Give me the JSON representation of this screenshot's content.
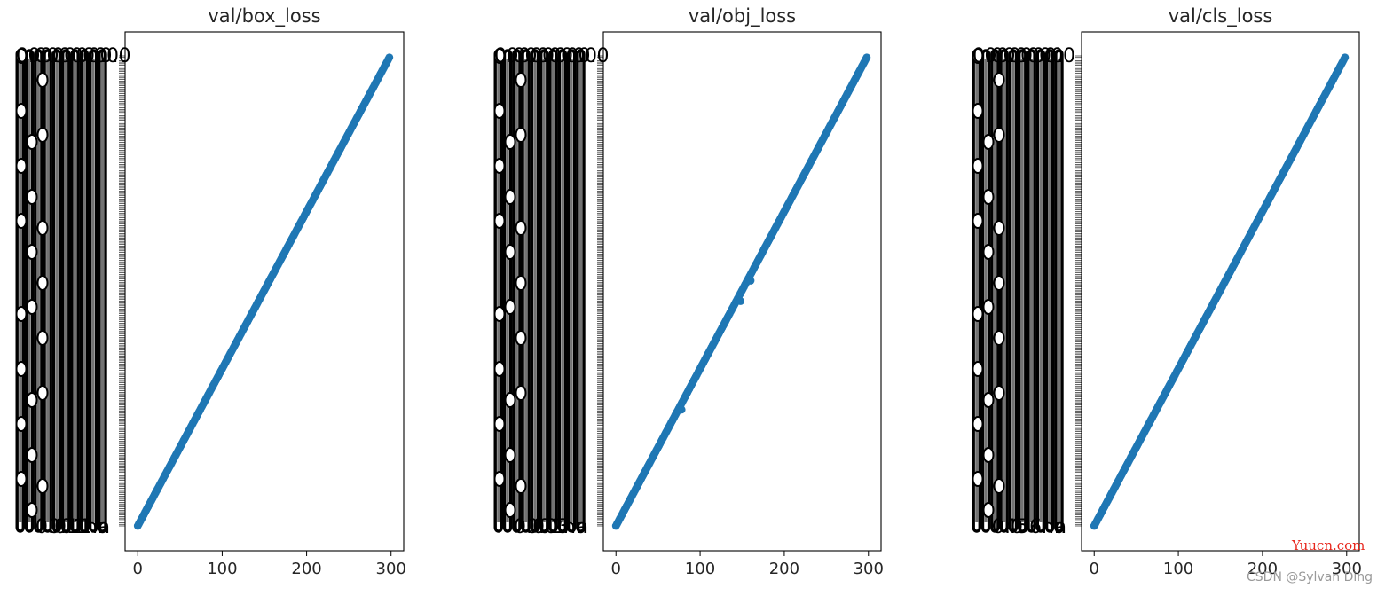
{
  "chart_data": [
    {
      "type": "scatter",
      "title": "val/box_loss",
      "xlim": [
        -15,
        315
      ],
      "ylim": [
        0,
        299
      ],
      "xticks": [
        0,
        100,
        200,
        300
      ],
      "x_tick_labels": [
        "0",
        "100",
        "200",
        "300"
      ],
      "y_tick_labels_first": [
        "0.0",
        "0.0",
        "0.0",
        "0.0",
        "0.0",
        "0.0",
        "0.0",
        "0.0"
      ],
      "y_tick_labels_last": [
        "0.0",
        "0.1",
        "0.1",
        "1",
        "na",
        "n"
      ],
      "y_tick_count": 300,
      "series": [
        {
          "x_start": 0,
          "x_end": 298,
          "y_start": 0,
          "y_end": 298,
          "color": "#1f77b4"
        }
      ]
    },
    {
      "type": "scatter",
      "title": "val/obj_loss",
      "xlim": [
        -15,
        315
      ],
      "ylim": [
        0,
        299
      ],
      "xticks": [
        0,
        100,
        200,
        300
      ],
      "x_tick_labels": [
        "0",
        "100",
        "200",
        "300"
      ],
      "y_tick_labels_first": [
        "0.0",
        "0.0",
        "0.0",
        "0.0",
        "0.0",
        "0.0",
        "0.0",
        "0.0"
      ],
      "y_tick_labels_last": [
        "0.0",
        "0.0",
        "0.3",
        "2",
        "na",
        "n"
      ],
      "y_tick_count": 300,
      "outliers": [
        {
          "x": 78,
          "y": 74
        },
        {
          "x": 148,
          "y": 143
        },
        {
          "x": 160,
          "y": 156
        }
      ],
      "series": [
        {
          "x_start": 0,
          "x_end": 298,
          "y_start": 0,
          "y_end": 298,
          "color": "#1f77b4"
        }
      ]
    },
    {
      "type": "scatter",
      "title": "val/cls_loss",
      "xlim": [
        -15,
        315
      ],
      "ylim": [
        0,
        299
      ],
      "xticks": [
        0,
        100,
        200,
        300
      ],
      "x_tick_labels": [
        "0",
        "100",
        "200",
        "300"
      ],
      "y_tick_labels_first": [
        "0.0",
        "0.0",
        "0.0",
        "0.0",
        "0.0",
        "0.0",
        "0.0"
      ],
      "y_tick_labels_last": [
        "0.0",
        "4",
        "5",
        "6",
        "na",
        "n"
      ],
      "y_tick_count": 300,
      "series": [
        {
          "x_start": 0,
          "x_end": 298,
          "y_start": 0,
          "y_end": 298,
          "color": "#1f77b4"
        }
      ]
    }
  ],
  "watermark": {
    "site": "Yuucn.com",
    "author": "CSDN @Sylvan Ding"
  }
}
